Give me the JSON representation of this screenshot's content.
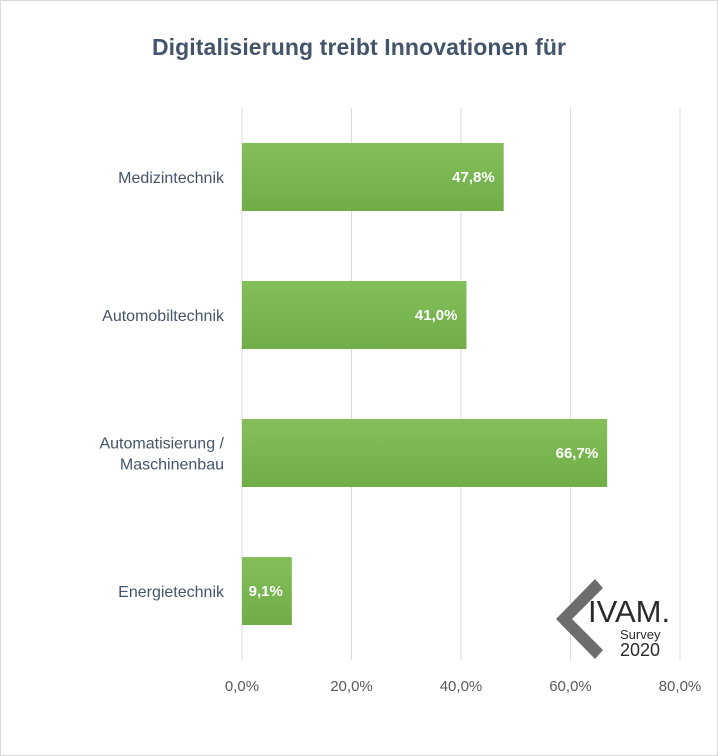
{
  "chart_data": {
    "type": "bar",
    "orientation": "horizontal",
    "title": "Digitalisierung treibt Innovationen für",
    "categories": [
      [
        "Medizintechnik"
      ],
      [
        "Automobiltechnik"
      ],
      [
        "Automatisierung /",
        "Maschinenbau"
      ],
      [
        "Energietechnik"
      ]
    ],
    "values": [
      47.8,
      41.0,
      66.7,
      9.1
    ],
    "data_labels": [
      "47,8%",
      "41,0%",
      "66,7%",
      "9,1%"
    ],
    "xlim": [
      0,
      80
    ],
    "ticks": [
      0,
      20,
      40,
      60,
      80
    ],
    "tick_labels": [
      "0,0%",
      "20,0%",
      "40,0%",
      "60,0%",
      "80,0%"
    ],
    "grid": true,
    "bar_color": "#70ad47",
    "bar_color_light": "#84bf5a"
  },
  "logo": {
    "text_main": "IVAM.",
    "text_sub": "Survey",
    "year": "2020"
  }
}
